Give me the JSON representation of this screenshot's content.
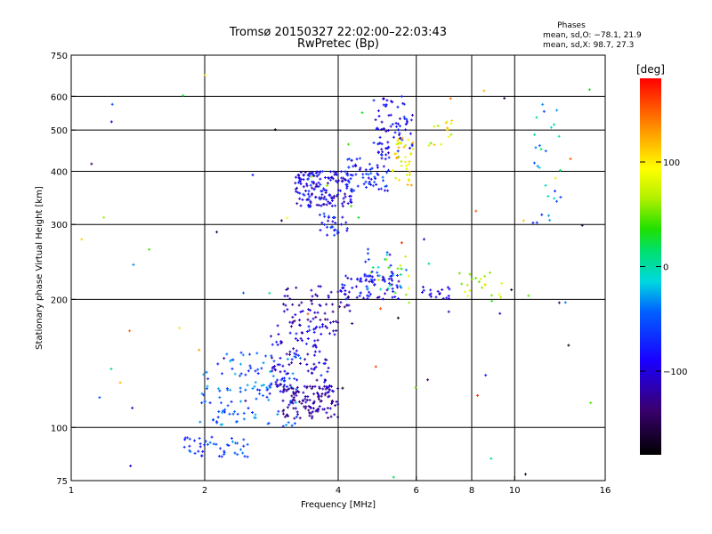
{
  "title_line1": "Tromsø 20150327 22:02:00–22:03:43",
  "title_line2": "RwPretec (Bp)",
  "stats": {
    "header": "Phases",
    "line_o": "mean, sd,O: −78.1, 21.9",
    "line_x": "mean, sd,X:  98.7, 27.3"
  },
  "colorbar": {
    "label": "[deg]",
    "min": -180,
    "max": 180,
    "ticks": [
      {
        "value": 100,
        "label": "100"
      },
      {
        "value": 0,
        "label": "0"
      },
      {
        "value": -100,
        "label": "−100"
      }
    ]
  },
  "chart_data": {
    "type": "scatter",
    "xlabel": "Frequency [MHz]",
    "ylabel": "Stationary phase Virtual Height [km]",
    "xscale": "log2",
    "yscale": "log",
    "xlim": [
      1,
      16
    ],
    "ylim": [
      75,
      750
    ],
    "xticks": [
      {
        "value": 1,
        "label": "1"
      },
      {
        "value": 2,
        "label": "2"
      },
      {
        "value": 4,
        "label": "4"
      },
      {
        "value": 6,
        "label": "6"
      },
      {
        "value": 8,
        "label": "8"
      },
      {
        "value": 10,
        "label": "10"
      },
      {
        "value": 16,
        "label": "16"
      }
    ],
    "yticks": [
      {
        "value": 75,
        "label": "75"
      },
      {
        "value": 100,
        "label": "100"
      },
      {
        "value": 200,
        "label": "200"
      },
      {
        "value": 300,
        "label": "300"
      },
      {
        "value": 400,
        "label": "400"
      },
      {
        "value": 500,
        "label": "500"
      },
      {
        "value": 600,
        "label": "600"
      },
      {
        "value": 750,
        "label": "750"
      }
    ],
    "xgrid": [
      2,
      4,
      6,
      8,
      10
    ],
    "ygrid": [
      100,
      200,
      300,
      400,
      500,
      600
    ],
    "color_variable": "phase [deg]",
    "clusters": [
      {
        "f": [
          1.8,
          2.5
        ],
        "h": [
          85,
          95
        ],
        "phase": [
          -90,
          -30
        ],
        "n": 45
      },
      {
        "f": [
          1.95,
          3.3
        ],
        "h": [
          100,
          150
        ],
        "phase": [
          -80,
          -20
        ],
        "n": 130
      },
      {
        "f": [
          3.0,
          4.0
        ],
        "h": [
          105,
          125
        ],
        "phase": [
          -140,
          -100
        ],
        "n": 120
      },
      {
        "f": [
          2.8,
          4.0
        ],
        "h": [
          120,
          175
        ],
        "phase": [
          -130,
          -70
        ],
        "n": 120
      },
      {
        "f": [
          3.0,
          4.3
        ],
        "h": [
          175,
          215
        ],
        "phase": [
          -140,
          -90
        ],
        "n": 70
      },
      {
        "f": [
          4.0,
          5.5
        ],
        "h": [
          200,
          230
        ],
        "phase": [
          -130,
          -60
        ],
        "n": 70
      },
      {
        "f": [
          4.6,
          5.8
        ],
        "h": [
          205,
          260
        ],
        "phase": [
          -120,
          90
        ],
        "n": 40
      },
      {
        "f": [
          3.2,
          4.3
        ],
        "h": [
          330,
          400
        ],
        "phase": [
          -130,
          -60
        ],
        "n": 170
      },
      {
        "f": [
          3.6,
          4.2
        ],
        "h": [
          280,
          320
        ],
        "phase": [
          -110,
          -50
        ],
        "n": 30
      },
      {
        "f": [
          4.2,
          5.2
        ],
        "h": [
          360,
          430
        ],
        "phase": [
          -110,
          -40
        ],
        "n": 60
      },
      {
        "f": [
          4.8,
          5.9
        ],
        "h": [
          430,
          600
        ],
        "phase": [
          -120,
          -60
        ],
        "n": 80
      },
      {
        "f": [
          5.3,
          5.9
        ],
        "h": [
          370,
          480
        ],
        "phase": [
          60,
          130
        ],
        "n": 40
      },
      {
        "f": [
          6.1,
          7.2
        ],
        "h": [
          200,
          215
        ],
        "phase": [
          -120,
          -80
        ],
        "n": 18
      },
      {
        "f": [
          6.4,
          7.3
        ],
        "h": [
          460,
          540
        ],
        "phase": [
          40,
          120
        ],
        "n": 15
      },
      {
        "f": [
          7.4,
          9.5
        ],
        "h": [
          200,
          235
        ],
        "phase": [
          50,
          110
        ],
        "n": 20
      },
      {
        "f": [
          11.0,
          13.0
        ],
        "h": [
          300,
          620
        ],
        "phase": [
          -80,
          20
        ],
        "n": 25
      },
      {
        "f": [
          1.0,
          16.0
        ],
        "h": [
          75,
          680
        ],
        "phase": [
          -180,
          180
        ],
        "n": 70
      }
    ]
  }
}
